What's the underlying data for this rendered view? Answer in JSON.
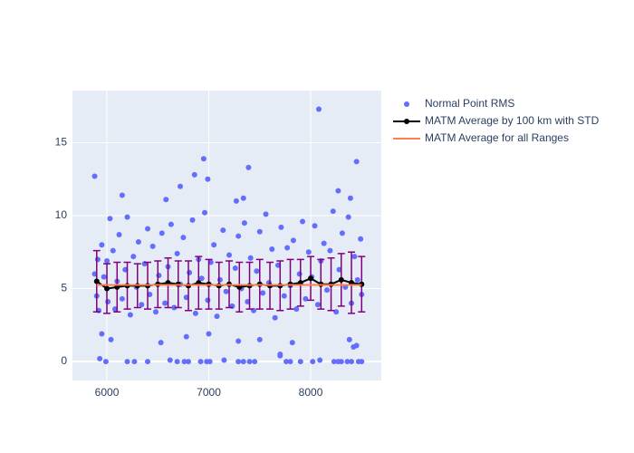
{
  "chart_data": {
    "type": "scatter",
    "xlim": [
      5662,
      8693
    ],
    "ylim": [
      -1.3,
      18.57
    ],
    "xticks": [
      6000,
      7000,
      8000
    ],
    "yticks": [
      0,
      5,
      10,
      15
    ],
    "grid": true,
    "legend": "outside-right",
    "series": [
      {
        "name": "Normal Point RMS",
        "mode": "markers",
        "color": "#636efa",
        "x": [
          8080,
          6950,
          5880,
          7390,
          8450,
          6860,
          6990,
          6720,
          8270,
          6150,
          8390,
          7340,
          6580,
          7270,
          5930,
          5990,
          6200,
          6270,
          6400,
          6620,
          6690,
          6760,
          6800,
          6920,
          6980,
          7010,
          7150,
          7290,
          7340,
          7400,
          7450,
          7700,
          7760,
          7800,
          7900,
          8020,
          8090,
          8230,
          8270,
          8300,
          8360,
          8400,
          8470,
          8500,
          5950,
          6040,
          6530,
          6780,
          7000,
          7290,
          7500,
          7820,
          7700,
          8420,
          8450,
          8380,
          5880,
          5900,
          5910,
          5920,
          5950,
          5970,
          6000,
          6010,
          6030,
          6060,
          6080,
          6100,
          6120,
          6150,
          6180,
          6200,
          6230,
          6260,
          6290,
          6310,
          6340,
          6370,
          6400,
          6420,
          6450,
          6480,
          6510,
          6540,
          6570,
          6600,
          6630,
          6660,
          6690,
          6720,
          6750,
          6780,
          6810,
          6840,
          6870,
          6900,
          6930,
          6960,
          6990,
          7020,
          7050,
          7080,
          7110,
          7140,
          7170,
          7200,
          7230,
          7260,
          7290,
          7320,
          7350,
          7380,
          7410,
          7440,
          7470,
          7500,
          7530,
          7560,
          7590,
          7620,
          7650,
          7680,
          7710,
          7740,
          7770,
          7800,
          7830,
          7860,
          7890,
          7920,
          7950,
          7980,
          8010,
          8040,
          8070,
          8100,
          8130,
          8160,
          8190,
          8220,
          8250,
          8280,
          8310,
          8340,
          8370,
          8400,
          8430,
          8460,
          8490,
          8500
        ],
        "values": [
          17.3,
          13.9,
          12.7,
          13.3,
          13.7,
          12.8,
          12.5,
          12.0,
          11.7,
          11.4,
          11.2,
          11.2,
          11.1,
          11.0,
          0.2,
          0,
          0,
          0,
          0,
          0.1,
          0,
          0,
          0,
          0,
          0,
          0,
          0.1,
          0,
          0,
          0,
          0,
          0.4,
          0,
          0,
          0,
          0,
          0.1,
          0,
          0,
          0,
          0,
          0,
          0,
          0,
          1.9,
          1.5,
          1.3,
          1.7,
          1.9,
          1.4,
          1.5,
          1.3,
          0.5,
          1.0,
          1.1,
          1.5,
          6.0,
          4.5,
          7.0,
          3.5,
          8.0,
          5.8,
          6.9,
          4.1,
          9.8,
          7.6,
          3.6,
          5.5,
          8.7,
          4.3,
          6.3,
          9.9,
          3.2,
          7.2,
          5.1,
          8.2,
          3.9,
          6.7,
          9.1,
          4.6,
          7.9,
          3.4,
          5.9,
          8.8,
          4.0,
          6.5,
          9.4,
          3.7,
          7.4,
          5.3,
          8.5,
          4.4,
          6.1,
          9.7,
          3.3,
          7.0,
          5.7,
          10.2,
          4.2,
          6.8,
          8.0,
          3.1,
          5.6,
          9.0,
          4.8,
          7.3,
          3.8,
          6.4,
          8.6,
          5.0,
          9.5,
          4.1,
          7.1,
          3.5,
          6.2,
          8.9,
          4.7,
          10.1,
          5.4,
          7.7,
          3.0,
          6.6,
          9.2,
          4.5,
          7.8,
          5.2,
          8.3,
          3.6,
          6.0,
          9.6,
          4.3,
          7.5,
          5.8,
          9.3,
          3.9,
          6.9,
          8.1,
          4.9,
          7.6,
          10.3,
          3.4,
          6.3,
          8.8,
          5.1,
          9.9,
          4.0,
          7.2,
          5.6,
          8.4,
          4.6
        ]
      },
      {
        "name": "MATM Average by 100 km with STD",
        "mode": "lines+markers",
        "color": "#000000",
        "error_color": "#800080",
        "x": [
          5900,
          6000,
          6100,
          6200,
          6300,
          6400,
          6500,
          6600,
          6700,
          6800,
          6900,
          7000,
          7100,
          7200,
          7300,
          7400,
          7500,
          7600,
          7700,
          7800,
          7900,
          8000,
          8100,
          8200,
          8300,
          8400,
          8500
        ],
        "values": [
          5.5,
          5.0,
          5.1,
          5.2,
          5.2,
          5.2,
          5.3,
          5.4,
          5.3,
          5.2,
          5.4,
          5.3,
          5.2,
          5.3,
          5.1,
          5.2,
          5.3,
          5.2,
          5.2,
          5.3,
          5.4,
          5.7,
          5.3,
          5.3,
          5.6,
          5.4,
          5.3
        ],
        "errors": [
          2.1,
          1.7,
          1.7,
          1.6,
          1.5,
          1.6,
          1.6,
          1.7,
          1.6,
          1.7,
          1.8,
          1.7,
          1.6,
          1.6,
          1.7,
          1.6,
          1.7,
          1.6,
          1.7,
          1.7,
          1.6,
          1.5,
          1.7,
          1.8,
          1.8,
          2.1,
          1.9
        ]
      },
      {
        "name": "MATM Average for all Ranges",
        "mode": "lines",
        "color": "#ff7f50",
        "x": [
          5900,
          8500
        ],
        "values": [
          5.25,
          5.25
        ]
      }
    ]
  }
}
